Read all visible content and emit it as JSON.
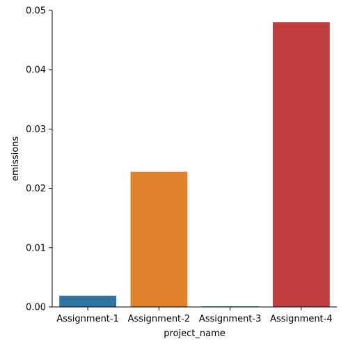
{
  "chart_data": {
    "type": "bar",
    "title": "",
    "xlabel": "project_name",
    "ylabel": "emissions",
    "categories": [
      "Assignment-1",
      "Assignment-2",
      "Assignment-3",
      "Assignment-4"
    ],
    "values": [
      0.0019,
      0.0228,
      0.0001,
      0.048
    ],
    "colors": [
      "#3274a1",
      "#e1812c",
      "#3a923a",
      "#c03d3e"
    ],
    "ylim": [
      0,
      0.05
    ],
    "yticks": [
      0.0,
      0.01,
      0.02,
      0.03,
      0.04,
      0.05
    ],
    "ytick_labels": [
      "0.00",
      "0.01",
      "0.02",
      "0.03",
      "0.04",
      "0.05"
    ],
    "grid": false,
    "legend": "none"
  }
}
